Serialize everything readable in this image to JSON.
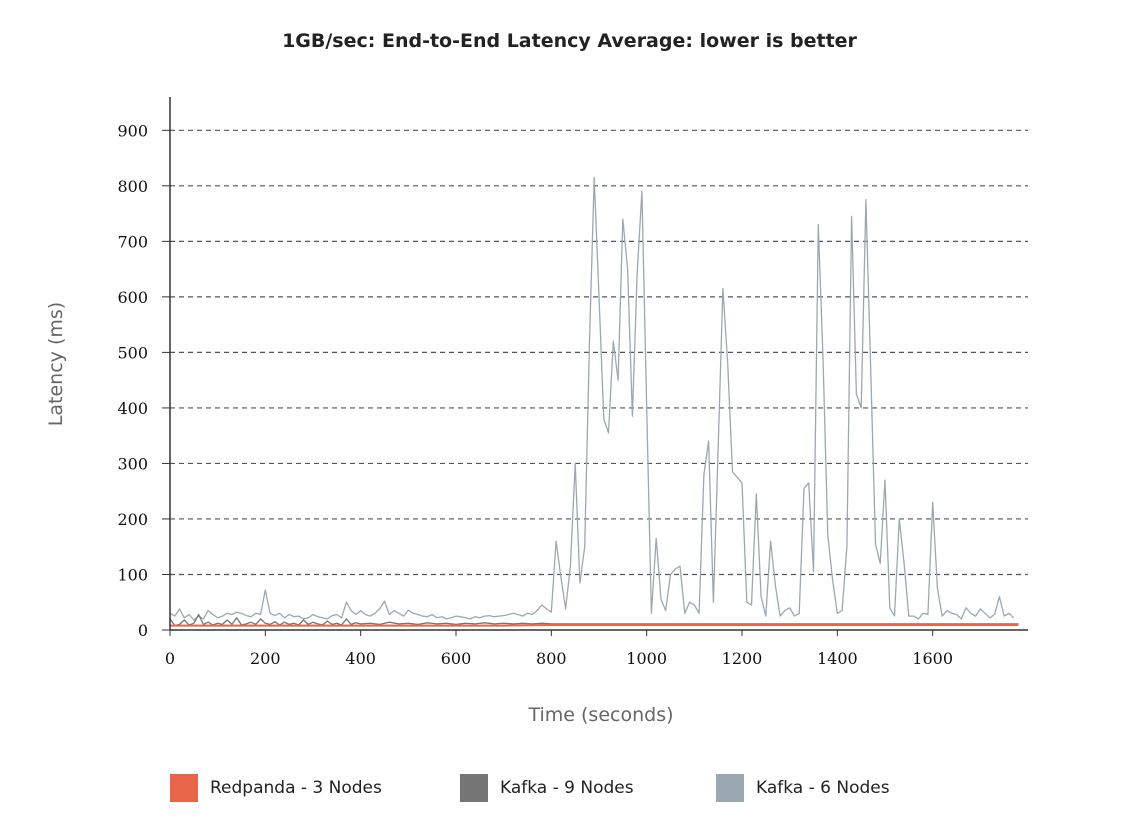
{
  "chart_data": {
    "type": "line",
    "title": "1GB/sec: End-to-End Latency Average: lower is better",
    "xlabel": "Time (seconds)",
    "ylabel": "Latency (ms)",
    "xlim": [
      0,
      1800
    ],
    "ylim": [
      0,
      960
    ],
    "x_ticks": [
      0,
      200,
      400,
      600,
      800,
      1000,
      1200,
      1400,
      1600
    ],
    "y_ticks": [
      0,
      100,
      200,
      300,
      400,
      500,
      600,
      700,
      800,
      900
    ],
    "grid": "horizontal dashed",
    "legend_position": "bottom",
    "series": [
      {
        "name": "Redpanda - 3 Nodes",
        "color": "#e8654a",
        "x": [
          0,
          100,
          200,
          300,
          400,
          500,
          600,
          700,
          800,
          900,
          1000,
          1100,
          1200,
          1300,
          1400,
          1500,
          1600,
          1700,
          1780
        ],
        "y": [
          8,
          8,
          8,
          8,
          8,
          8,
          8,
          8,
          9,
          9,
          9,
          9,
          9,
          9,
          9,
          9,
          9,
          9,
          9
        ]
      },
      {
        "name": "Kafka - 9 Nodes",
        "color": "#757575",
        "x": [
          0,
          10,
          20,
          30,
          40,
          50,
          60,
          70,
          80,
          90,
          100,
          110,
          120,
          130,
          140,
          150,
          160,
          170,
          180,
          190,
          200,
          210,
          220,
          230,
          240,
          250,
          260,
          270,
          280,
          290,
          300,
          310,
          320,
          330,
          340,
          350,
          360,
          370,
          380,
          390,
          400,
          420,
          440,
          460,
          480,
          500,
          520,
          540,
          560,
          580,
          600,
          620,
          640,
          660,
          680,
          700,
          720,
          740,
          760,
          780,
          800,
          840,
          880,
          920,
          960,
          1000,
          1050,
          1100,
          1150,
          1200,
          1250,
          1300,
          1350,
          1400,
          1450,
          1500,
          1550,
          1600,
          1650,
          1700,
          1750,
          1780
        ],
        "y": [
          20,
          8,
          10,
          18,
          9,
          12,
          28,
          10,
          14,
          9,
          12,
          10,
          18,
          10,
          22,
          9,
          11,
          14,
          10,
          20,
          12,
          10,
          15,
          9,
          14,
          10,
          12,
          9,
          18,
          10,
          14,
          11,
          9,
          16,
          10,
          12,
          9,
          20,
          10,
          13,
          11,
          12,
          10,
          14,
          11,
          12,
          10,
          13,
          11,
          12,
          10,
          12,
          11,
          13,
          11,
          12,
          11,
          12,
          11,
          12,
          11,
          11,
          11,
          11,
          11,
          11,
          11,
          11,
          11,
          11,
          11,
          11,
          11,
          11,
          11,
          11,
          11,
          11,
          11,
          11,
          11,
          11
        ]
      },
      {
        "name": "Kafka - 6 Nodes",
        "color": "#9aa9b1",
        "x": [
          0,
          10,
          20,
          30,
          40,
          50,
          60,
          70,
          80,
          90,
          100,
          110,
          120,
          130,
          140,
          150,
          160,
          170,
          180,
          190,
          200,
          210,
          220,
          230,
          240,
          250,
          260,
          270,
          280,
          290,
          300,
          310,
          320,
          330,
          340,
          350,
          360,
          370,
          380,
          390,
          400,
          410,
          420,
          430,
          440,
          450,
          460,
          470,
          480,
          490,
          500,
          510,
          520,
          530,
          540,
          550,
          560,
          570,
          580,
          590,
          600,
          610,
          620,
          630,
          640,
          650,
          660,
          670,
          680,
          690,
          700,
          710,
          720,
          730,
          740,
          750,
          760,
          770,
          780,
          790,
          800,
          810,
          820,
          830,
          840,
          850,
          860,
          870,
          880,
          890,
          900,
          910,
          920,
          930,
          940,
          950,
          960,
          970,
          980,
          990,
          1000,
          1010,
          1020,
          1030,
          1040,
          1050,
          1060,
          1070,
          1080,
          1090,
          1100,
          1110,
          1120,
          1130,
          1140,
          1150,
          1160,
          1170,
          1180,
          1190,
          1200,
          1210,
          1220,
          1230,
          1240,
          1250,
          1260,
          1270,
          1280,
          1290,
          1300,
          1310,
          1320,
          1330,
          1340,
          1350,
          1360,
          1370,
          1380,
          1390,
          1400,
          1410,
          1420,
          1430,
          1440,
          1450,
          1460,
          1470,
          1480,
          1490,
          1500,
          1510,
          1520,
          1530,
          1540,
          1550,
          1560,
          1570,
          1580,
          1590,
          1600,
          1610,
          1620,
          1630,
          1640,
          1650,
          1660,
          1670,
          1680,
          1690,
          1700,
          1710,
          1720,
          1730,
          1740,
          1750,
          1760,
          1770
        ],
        "y": [
          30,
          25,
          38,
          22,
          28,
          18,
          25,
          20,
          35,
          28,
          22,
          25,
          30,
          28,
          32,
          30,
          26,
          24,
          30,
          28,
          72,
          30,
          26,
          30,
          22,
          28,
          24,
          25,
          20,
          22,
          28,
          24,
          22,
          20,
          26,
          28,
          22,
          50,
          35,
          28,
          35,
          28,
          25,
          30,
          38,
          52,
          28,
          35,
          30,
          25,
          36,
          30,
          28,
          25,
          24,
          28,
          22,
          24,
          20,
          22,
          25,
          24,
          22,
          20,
          24,
          22,
          25,
          26,
          24,
          25,
          26,
          28,
          30,
          28,
          25,
          30,
          28,
          35,
          45,
          38,
          32,
          160,
          95,
          38,
          115,
          300,
          85,
          150,
          520,
          815,
          600,
          380,
          355,
          520,
          450,
          740,
          650,
          385,
          640,
          790,
          400,
          30,
          165,
          55,
          35,
          100,
          110,
          115,
          30,
          50,
          45,
          30,
          280,
          340,
          50,
          330,
          615,
          480,
          285,
          275,
          265,
          50,
          45,
          245,
          60,
          25,
          160,
          80,
          25,
          35,
          40,
          25,
          30,
          255,
          265,
          105,
          730,
          490,
          170,
          90,
          30,
          35,
          150,
          745,
          425,
          400,
          775,
          470,
          155,
          120,
          270,
          40,
          25,
          200,
          120,
          25,
          25,
          20,
          30,
          28,
          230,
          75,
          25,
          35,
          30,
          28,
          20,
          40,
          30,
          25,
          38,
          30,
          22,
          28,
          60,
          25,
          30,
          22
        ]
      }
    ]
  }
}
